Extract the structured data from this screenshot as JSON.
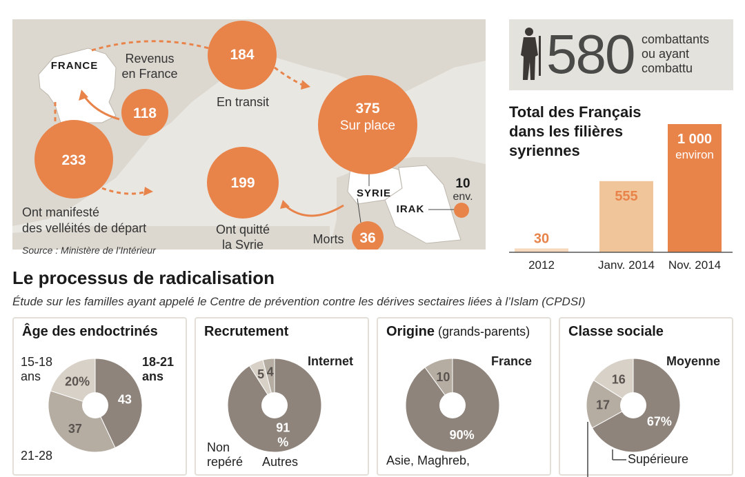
{
  "map": {
    "france_label": "FRANCE",
    "syrie_label": "SYRIE",
    "irak_label": "IRAK",
    "source": "Source : Ministère de l’Intérieur",
    "bubbles": [
      {
        "id": "revenus",
        "value": "118",
        "caption": "Revenus\nen France"
      },
      {
        "id": "transit",
        "value": "184",
        "caption": "En transit"
      },
      {
        "id": "velleites",
        "value": "233",
        "caption": "Ont manifesté\ndes velléités de départ"
      },
      {
        "id": "surplace",
        "value": "375",
        "caption": "Sur place"
      },
      {
        "id": "quitte",
        "value": "199",
        "caption": "Ont quitté\nla Syrie"
      },
      {
        "id": "morts",
        "value": "36",
        "caption": "Morts"
      },
      {
        "id": "irak",
        "value": "10",
        "caption": "env."
      }
    ]
  },
  "summary": {
    "count": "580",
    "caption": "combattants\nou ayant\ncombattu"
  },
  "bar_title": "Total des Français dans les filières syriennes",
  "cards": [
    {
      "title": "Âge des endoctrinés",
      "subtitle": "",
      "labels": [
        {
          "t": "15-18\nans",
          "bold": false
        },
        {
          "t": "18-21\nans",
          "bold": true
        },
        {
          "t": "21-28",
          "bold": false
        }
      ]
    },
    {
      "title": "Recrutement",
      "subtitle": "",
      "labels": [
        {
          "t": "Internet",
          "bold": true
        },
        {
          "t": "Non\nrepéré",
          "bold": false
        },
        {
          "t": "Autres",
          "bold": false
        }
      ]
    },
    {
      "title": "Origine",
      "subtitle": " (grands-parents)",
      "labels": [
        {
          "t": "France",
          "bold": true
        },
        {
          "t": "Asie, Maghreb,",
          "bold": false
        }
      ]
    },
    {
      "title": "Classe sociale",
      "subtitle": "",
      "labels": [
        {
          "t": "Moyenne",
          "bold": true
        },
        {
          "t": "Supérieure",
          "bold": false
        }
      ]
    }
  ],
  "section": {
    "title": "Le processus de radicalisation",
    "subtitle": "Étude sur les familles ayant appelé le Centre de prévention contre les dérives sectaires liées à l’Islam (CPDSI)"
  },
  "colors": {
    "orange": "#e8834a",
    "light_orange": "#f1c59a",
    "pale_orange": "#f6d9bd",
    "dark_taupe": "#8e847b",
    "mid_taupe": "#b5aca2",
    "light_taupe": "#d8d1c7",
    "map_bg": "#e9e7e2"
  },
  "chart_data": [
    {
      "type": "bar",
      "title": "Total des Français dans les filières syriennes",
      "categories": [
        "2012",
        "Janv. 2014",
        "Nov. 2014"
      ],
      "values": [
        30,
        555,
        1000
      ],
      "value_labels": [
        "30",
        "555",
        "1 000"
      ],
      "value_sublabels": [
        "",
        "",
        "environ"
      ],
      "ylim": [
        0,
        1000
      ]
    },
    {
      "type": "pie",
      "title": "Âge des endoctrinés",
      "slices": [
        {
          "label": "18-21 ans",
          "value": 43,
          "text": "43"
        },
        {
          "label": "21-28",
          "value": 37,
          "text": "37"
        },
        {
          "label": "15-18 ans",
          "value": 20,
          "text": "20%"
        }
      ]
    },
    {
      "type": "pie",
      "title": "Recrutement",
      "slices": [
        {
          "label": "Internet",
          "value": 91,
          "text": "91\n%"
        },
        {
          "label": "Autres",
          "value": 5,
          "text": "5"
        },
        {
          "label": "Non repéré",
          "value": 4,
          "text": "4"
        }
      ]
    },
    {
      "type": "pie",
      "title": "Origine (grands-parents)",
      "slices": [
        {
          "label": "France",
          "value": 90,
          "text": "90%"
        },
        {
          "label": "Asie, Maghreb,",
          "value": 10,
          "text": "10"
        }
      ]
    },
    {
      "type": "pie",
      "title": "Classe sociale",
      "slices": [
        {
          "label": "Moyenne",
          "value": 67,
          "text": "67%"
        },
        {
          "label": "Supérieure",
          "value": 17,
          "text": "17"
        },
        {
          "label": "",
          "value": 16,
          "text": "16"
        }
      ]
    }
  ]
}
